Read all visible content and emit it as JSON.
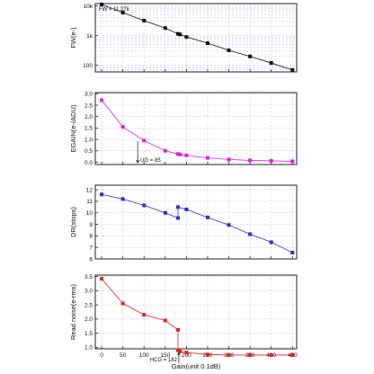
{
  "chart_data": [
    {
      "type": "line",
      "ylabel": "FW(e-)",
      "yscale": "log",
      "ylim": [
        60,
        12000
      ],
      "yticks": [
        100,
        1000,
        10000
      ],
      "ytick_labels": [
        "100",
        "1k",
        "10k"
      ],
      "xlim": [
        -15,
        460
      ],
      "grid": true,
      "color": "#111111",
      "x": [
        0,
        50,
        100,
        150,
        180,
        185,
        200,
        250,
        300,
        350,
        400,
        450
      ],
      "values": [
        11270,
        6000,
        3200,
        1800,
        1150,
        1100,
        900,
        560,
        320,
        200,
        120,
        70
      ],
      "annotation": {
        "text": "FW = 11.27k",
        "x": 0,
        "y": 11270
      }
    },
    {
      "type": "line",
      "ylabel": "EGAIN(e-/ADU)",
      "ylim": [
        -0.1,
        3.05
      ],
      "yticks": [
        0.0,
        0.5,
        1.0,
        1.5,
        2.0,
        2.5,
        3.0
      ],
      "ytick_labels": [
        "0.0",
        "0.5",
        "1.0",
        "1.5",
        "2.0",
        "2.5",
        "3.0"
      ],
      "xlim": [
        -15,
        460
      ],
      "grid": true,
      "color": "#e020e0",
      "x": [
        0,
        50,
        100,
        150,
        180,
        185,
        200,
        250,
        300,
        350,
        400,
        450
      ],
      "values": [
        2.72,
        1.55,
        0.95,
        0.5,
        0.36,
        0.34,
        0.3,
        0.19,
        0.12,
        0.08,
        0.06,
        0.04
      ],
      "annotation": {
        "text": "UG = 85",
        "x": 85,
        "y": 1.0
      }
    },
    {
      "type": "line",
      "ylabel": "DR(stops)",
      "ylim": [
        6,
        12.4
      ],
      "yticks": [
        6,
        7,
        8,
        9,
        10,
        11,
        12
      ],
      "ytick_labels": [
        "6",
        "7",
        "8",
        "9",
        "10",
        "11",
        "12"
      ],
      "xlim": [
        -15,
        460
      ],
      "grid": true,
      "color": "#2e2ed8",
      "x": [
        0,
        50,
        100,
        150,
        180,
        180,
        200,
        250,
        300,
        350,
        400,
        450
      ],
      "values": [
        11.6,
        11.2,
        10.65,
        10.0,
        9.55,
        10.5,
        10.3,
        9.6,
        8.95,
        8.15,
        7.45,
        6.55
      ]
    },
    {
      "type": "line",
      "ylabel": "Read noise(e-rms)",
      "ylim": [
        0.95,
        3.55
      ],
      "yticks": [
        1.0,
        1.5,
        2.0,
        2.5,
        3.0,
        3.5
      ],
      "ytick_labels": [
        "1.0",
        "1.5",
        "2.0",
        "2.5",
        "3.0",
        "3.5"
      ],
      "xlim": [
        -15,
        460
      ],
      "xlabel": "Gain(unit 0.1dB)",
      "xticks": [
        0,
        50,
        100,
        150,
        200,
        250,
        300,
        350,
        400,
        450
      ],
      "xtick_labels": [
        "0",
        "50",
        "100",
        "150",
        "200",
        "250",
        "300",
        "350",
        "400",
        "450"
      ],
      "grid": true,
      "color": "#e82020",
      "x": [
        0,
        50,
        100,
        150,
        180,
        180,
        185,
        200,
        250,
        300,
        350,
        400,
        450
      ],
      "values": [
        3.42,
        2.55,
        2.15,
        1.95,
        1.62,
        0.9,
        0.86,
        0.82,
        0.75,
        0.73,
        0.73,
        0.73,
        0.73
      ],
      "annotation": {
        "text": "HCG = 182",
        "x": 182,
        "y": 0.88
      }
    }
  ]
}
